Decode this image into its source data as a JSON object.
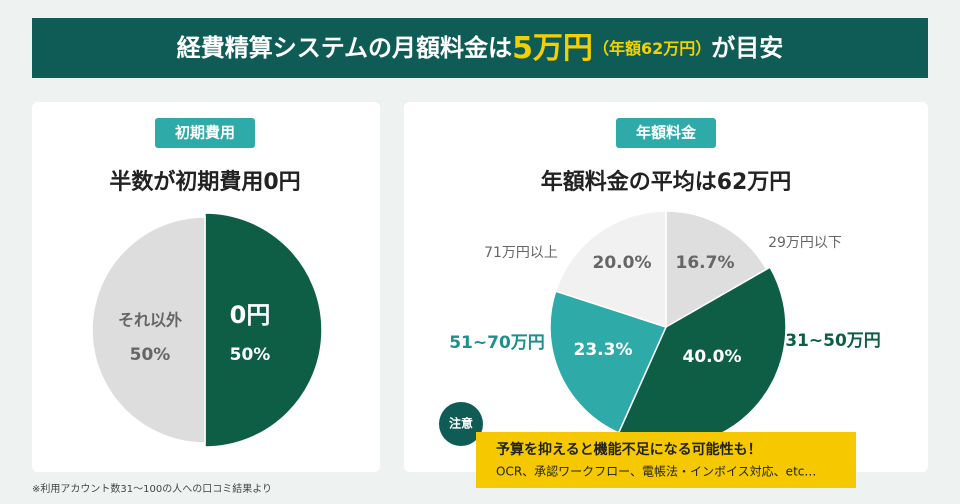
{
  "header": {
    "lead": "経費精算システムの月額料金は",
    "amount": "5万円",
    "annual": "（年額62万円）",
    "tail": "が目安"
  },
  "chart_data": [
    {
      "type": "pie",
      "badge": "初期費用",
      "title": "半数が初期費用0円",
      "categories": [
        "0円",
        "それ以外"
      ],
      "values": [
        50,
        50
      ],
      "value_labels": [
        "50%",
        "50%"
      ],
      "colors": [
        "#0d5e45",
        "#dddddd"
      ]
    },
    {
      "type": "pie",
      "badge": "年額料金",
      "title": "年額料金の平均は62万円",
      "categories": [
        "29万円以下",
        "31~50万円",
        "51~70万円",
        "71万円以上"
      ],
      "values": [
        16.7,
        40.0,
        23.3,
        20.0
      ],
      "value_labels": [
        "16.7%",
        "40.0%",
        "23.3%",
        "20.0%"
      ],
      "colors": [
        "#dedede",
        "#0d5e45",
        "#2eaaa8",
        "#f1f1f1"
      ]
    }
  ],
  "note": {
    "badge": "注意",
    "heading": "予算を抑えると機能不足になる可能性も！",
    "body": "OCR、承認ワークフロー、電帳法・インボイス対応、etc…"
  },
  "footnote": "※利用アカウント数31〜100の人への口コミ結果より"
}
